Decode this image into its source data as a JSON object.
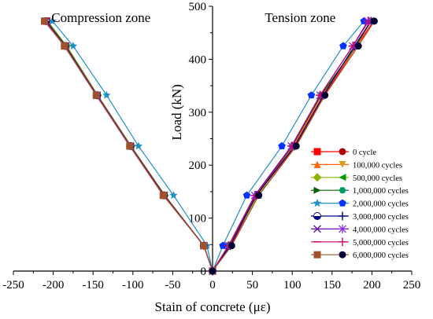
{
  "chart_data": {
    "type": "line",
    "xlabel": "Stain of concrete (με)",
    "ylabel": "Load (kN)",
    "xlim": [
      -250,
      250
    ],
    "ylim": [
      0,
      500
    ],
    "x_ticks": [
      -250,
      -200,
      -150,
      -100,
      -50,
      0,
      50,
      100,
      150,
      200,
      250
    ],
    "y_ticks": [
      0,
      100,
      200,
      300,
      400,
      500
    ],
    "annotations": [
      {
        "text": "Compression zone",
        "x": -140,
        "y": 470
      },
      {
        "text": "Tension zone",
        "x": 110,
        "y": 470
      }
    ],
    "grid": false,
    "legend_position": "right",
    "series": [
      {
        "name": "0 cycle",
        "color": "#ff0000",
        "marker1": "square",
        "marker2": "circle",
        "marker2_color": "#b00000",
        "compression": [
          [
            0,
            0
          ],
          [
            -11,
            48
          ],
          [
            -61,
            143
          ],
          [
            -103,
            236
          ],
          [
            -145,
            332
          ],
          [
            -184,
            425
          ],
          [
            -208,
            472
          ]
        ],
        "tension": [
          [
            0,
            0
          ],
          [
            23,
            48
          ],
          [
            56,
            143
          ],
          [
            104,
            236
          ],
          [
            140,
            332
          ],
          [
            181,
            425
          ],
          [
            202,
            472
          ]
        ]
      },
      {
        "name": "100,000 cycles",
        "color": "#ff6600",
        "marker1": "triangle-up",
        "marker2": "triangle-down",
        "marker2_color": "#d4a017",
        "compression": [
          [
            0,
            0
          ],
          [
            -11,
            48
          ],
          [
            -61,
            143
          ],
          [
            -103,
            236
          ],
          [
            -145,
            332
          ],
          [
            -184,
            425
          ],
          [
            -208,
            472
          ]
        ],
        "tension": [
          [
            0,
            0
          ],
          [
            21,
            48
          ],
          [
            57,
            143
          ],
          [
            102,
            236
          ],
          [
            137,
            332
          ],
          [
            181,
            425
          ],
          [
            199,
            472
          ]
        ]
      },
      {
        "name": "500,000 cycles",
        "color": "#8db600",
        "marker1": "diamond",
        "marker2": "triangle-left",
        "marker2_color": "#009900",
        "compression": [
          [
            0,
            0
          ],
          [
            -11,
            48
          ],
          [
            -60,
            143
          ],
          [
            -102,
            236
          ],
          [
            -144,
            332
          ],
          [
            -183,
            425
          ],
          [
            -207,
            472
          ]
        ],
        "tension": [
          [
            0,
            0
          ],
          [
            21,
            48
          ],
          [
            57,
            143
          ],
          [
            101,
            236
          ],
          [
            136,
            332
          ],
          [
            180,
            425
          ],
          [
            198,
            472
          ]
        ]
      },
      {
        "name": "1,000,000 cycles",
        "color": "#006600",
        "marker1": "triangle-right",
        "marker2": "hexagon",
        "marker2_color": "#009966",
        "compression": [
          [
            0,
            0
          ],
          [
            -11,
            48
          ],
          [
            -60,
            143
          ],
          [
            -103,
            236
          ],
          [
            -145,
            332
          ],
          [
            -184,
            425
          ],
          [
            -208,
            472
          ]
        ],
        "tension": [
          [
            0,
            0
          ],
          [
            20,
            48
          ],
          [
            55,
            143
          ],
          [
            100,
            236
          ],
          [
            136,
            332
          ],
          [
            180,
            425
          ],
          [
            198,
            472
          ]
        ]
      },
      {
        "name": "2,000,000 cycles",
        "color": "#1e90c8",
        "marker1": "star",
        "marker2": "pentagon",
        "marker2_color": "#0033ff",
        "compression": [
          [
            0,
            0
          ],
          [
            -7,
            48
          ],
          [
            -49,
            143
          ],
          [
            -93,
            236
          ],
          [
            -133,
            332
          ],
          [
            -175,
            425
          ],
          [
            -201,
            472
          ]
        ],
        "tension": [
          [
            0,
            0
          ],
          [
            13,
            48
          ],
          [
            43,
            143
          ],
          [
            87,
            236
          ],
          [
            124,
            332
          ],
          [
            164,
            425
          ],
          [
            190,
            472
          ]
        ]
      },
      {
        "name": "3,000,000 cycles",
        "color": "#000080",
        "marker1": "half-circle",
        "marker2": "plus",
        "marker2_color": "#000080",
        "compression": [
          [
            0,
            0
          ],
          [
            -11,
            48
          ],
          [
            -61,
            143
          ],
          [
            -103,
            236
          ],
          [
            -145,
            332
          ],
          [
            -185,
            425
          ],
          [
            -209,
            472
          ]
        ],
        "tension": [
          [
            0,
            0
          ],
          [
            22,
            48
          ],
          [
            55,
            143
          ],
          [
            103,
            236
          ],
          [
            139,
            332
          ],
          [
            178,
            425
          ],
          [
            199,
            472
          ]
        ]
      },
      {
        "name": "4,000,000 cycles",
        "color": "#6a0dad",
        "marker1": "cross",
        "marker2": "asterisk",
        "marker2_color": "#8a2be2",
        "compression": [
          [
            0,
            0
          ],
          [
            -11,
            48
          ],
          [
            -61,
            143
          ],
          [
            -103,
            236
          ],
          [
            -145,
            332
          ],
          [
            -185,
            425
          ],
          [
            -209,
            472
          ]
        ],
        "tension": [
          [
            0,
            0
          ],
          [
            20,
            48
          ],
          [
            53,
            143
          ],
          [
            99,
            236
          ],
          [
            135,
            332
          ],
          [
            176,
            425
          ],
          [
            195,
            472
          ]
        ]
      },
      {
        "name": "5,000,000 cycles",
        "color": "#cc0066",
        "marker1": "dash",
        "marker2": "plus",
        "marker2_color": "#cc0066",
        "compression": [
          [
            0,
            0
          ],
          [
            -11,
            48
          ],
          [
            -61,
            143
          ],
          [
            -104,
            236
          ],
          [
            -146,
            332
          ],
          [
            -186,
            425
          ],
          [
            -210,
            472
          ]
        ],
        "tension": [
          [
            0,
            0
          ],
          [
            20,
            48
          ],
          [
            54,
            143
          ],
          [
            100,
            236
          ],
          [
            135,
            332
          ],
          [
            176,
            425
          ],
          [
            196,
            472
          ]
        ]
      },
      {
        "name": "6,000,000 cycles",
        "color": "#a0522d",
        "marker1": "square",
        "marker2": "circle",
        "marker2_color": "#000033",
        "compression": [
          [
            0,
            0
          ],
          [
            -11,
            48
          ],
          [
            -62,
            143
          ],
          [
            -104,
            236
          ],
          [
            -146,
            332
          ],
          [
            -186,
            425
          ],
          [
            -211,
            472
          ]
        ],
        "tension": [
          [
            0,
            0
          ],
          [
            24,
            48
          ],
          [
            58,
            143
          ],
          [
            105,
            236
          ],
          [
            141,
            332
          ],
          [
            183,
            425
          ],
          [
            203,
            472
          ]
        ]
      }
    ]
  }
}
